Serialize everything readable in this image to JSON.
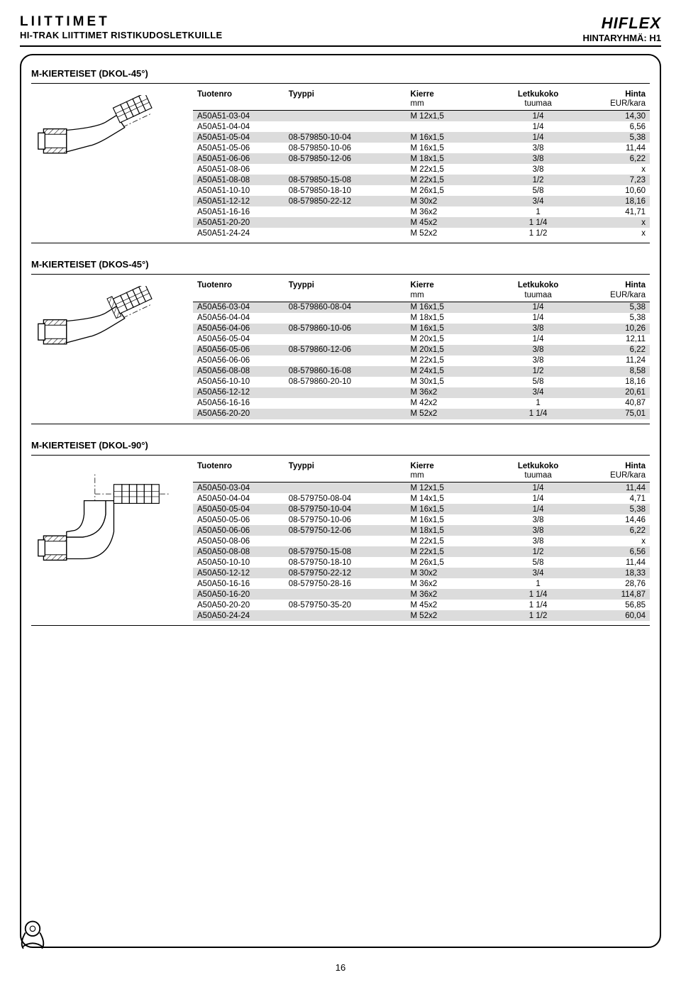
{
  "header": {
    "title_left": "LIITTIMET",
    "subtitle_left": "HI-TRAK LIITTIMET RISTIKUDOSLETKUILLE",
    "title_right": "HIFLEX",
    "subtitle_right": "HINTARYHMÄ: H1"
  },
  "columns": {
    "tuotenro": "Tuotenro",
    "tyyppi": "Tyyppi",
    "kierre": "Kierre",
    "kierre_sub": "mm",
    "letkukoko": "Letkukoko",
    "letkukoko_sub": "tuumaa",
    "hinta": "Hinta",
    "hinta_sub": "EUR/kara"
  },
  "sections": [
    {
      "title": "M-KIERTEISET (DKOL-45°)",
      "illus": "elbow45",
      "rows": [
        {
          "shade": true,
          "c": [
            "A50A51-03-04",
            "",
            "M 12x1,5",
            "1/4",
            "14,30"
          ]
        },
        {
          "shade": false,
          "c": [
            "A50A51-04-04",
            "",
            "",
            "1/4",
            "6,56"
          ]
        },
        {
          "shade": true,
          "c": [
            "A50A51-05-04",
            "08-579850-10-04",
            "M 16x1,5",
            "1/4",
            "5,38"
          ]
        },
        {
          "shade": false,
          "c": [
            "A50A51-05-06",
            "08-579850-10-06",
            "M 16x1,5",
            "3/8",
            "11,44"
          ]
        },
        {
          "shade": true,
          "c": [
            "A50A51-06-06",
            "08-579850-12-06",
            "M 18x1,5",
            "3/8",
            "6,22"
          ]
        },
        {
          "shade": false,
          "c": [
            "A50A51-08-06",
            "",
            "M 22x1,5",
            "3/8",
            "x"
          ]
        },
        {
          "shade": true,
          "c": [
            "A50A51-08-08",
            "08-579850-15-08",
            "M 22x1,5",
            "1/2",
            "7,23"
          ]
        },
        {
          "shade": false,
          "c": [
            "A50A51-10-10",
            "08-579850-18-10",
            "M 26x1,5",
            "5/8",
            "10,60"
          ]
        },
        {
          "shade": true,
          "c": [
            "A50A51-12-12",
            "08-579850-22-12",
            "M 30x2",
            "3/4",
            "18,16"
          ]
        },
        {
          "shade": false,
          "c": [
            "A50A51-16-16",
            "",
            "M 36x2",
            "1",
            "41,71"
          ]
        },
        {
          "shade": true,
          "c": [
            "A50A51-20-20",
            "",
            "M 45x2",
            "1 1/4",
            "x"
          ]
        },
        {
          "shade": false,
          "c": [
            "A50A51-24-24",
            "",
            "M 52x2",
            "1 1/2",
            "x"
          ]
        }
      ]
    },
    {
      "title": "M-KIERTEISET (DKOS-45°)",
      "illus": "elbow45b",
      "rows": [
        {
          "shade": true,
          "c": [
            "A50A56-03-04",
            "08-579860-08-04",
            "M 16x1,5",
            "1/4",
            "5,38"
          ]
        },
        {
          "shade": false,
          "c": [
            "A50A56-04-04",
            "",
            "M 18x1,5",
            "1/4",
            "5,38"
          ]
        },
        {
          "shade": true,
          "c": [
            "A50A56-04-06",
            "08-579860-10-06",
            "M 16x1,5",
            "3/8",
            "10,26"
          ]
        },
        {
          "shade": false,
          "c": [
            "A50A56-05-04",
            "",
            "M 20x1,5",
            "1/4",
            "12,11"
          ]
        },
        {
          "shade": true,
          "c": [
            "A50A56-05-06",
            "08-579860-12-06",
            "M 20x1,5",
            "3/8",
            "6,22"
          ]
        },
        {
          "shade": false,
          "c": [
            "A50A56-06-06",
            "",
            "M 22x1,5",
            "3/8",
            "11,24"
          ]
        },
        {
          "shade": true,
          "c": [
            "A50A56-08-08",
            "08-579860-16-08",
            "M 24x1,5",
            "1/2",
            "8,58"
          ]
        },
        {
          "shade": false,
          "c": [
            "A50A56-10-10",
            "08-579860-20-10",
            "M 30x1,5",
            "5/8",
            "18,16"
          ]
        },
        {
          "shade": true,
          "c": [
            "A50A56-12-12",
            "",
            "M 36x2",
            "3/4",
            "20,61"
          ]
        },
        {
          "shade": false,
          "c": [
            "A50A56-16-16",
            "",
            "M 42x2",
            "1",
            "40,87"
          ]
        },
        {
          "shade": true,
          "c": [
            "A50A56-20-20",
            "",
            "M 52x2",
            "1 1/4",
            "75,01"
          ]
        }
      ]
    },
    {
      "title": "M-KIERTEISET (DKOL-90°)",
      "illus": "elbow90",
      "rows": [
        {
          "shade": true,
          "c": [
            "A50A50-03-04",
            "",
            "M 12x1,5",
            "1/4",
            "11,44"
          ]
        },
        {
          "shade": false,
          "c": [
            "A50A50-04-04",
            "08-579750-08-04",
            "M 14x1,5",
            "1/4",
            "4,71"
          ]
        },
        {
          "shade": true,
          "c": [
            "A50A50-05-04",
            "08-579750-10-04",
            "M 16x1,5",
            "1/4",
            "5,38"
          ]
        },
        {
          "shade": false,
          "c": [
            "A50A50-05-06",
            "08-579750-10-06",
            "M 16x1,5",
            "3/8",
            "14,46"
          ]
        },
        {
          "shade": true,
          "c": [
            "A50A50-06-06",
            "08-579750-12-06",
            "M 18x1,5",
            "3/8",
            "6,22"
          ]
        },
        {
          "shade": false,
          "c": [
            "A50A50-08-06",
            "",
            "M 22x1,5",
            "3/8",
            "x"
          ]
        },
        {
          "shade": true,
          "c": [
            "A50A50-08-08",
            "08-579750-15-08",
            "M 22x1,5",
            "1/2",
            "6,56"
          ]
        },
        {
          "shade": false,
          "c": [
            "A50A50-10-10",
            "08-579750-18-10",
            "M 26x1,5",
            "5/8",
            "11,44"
          ]
        },
        {
          "shade": true,
          "c": [
            "A50A50-12-12",
            "08-579750-22-12",
            "M 30x2",
            "3/4",
            "18,33"
          ]
        },
        {
          "shade": false,
          "c": [
            "A50A50-16-16",
            "08-579750-28-16",
            "M 36x2",
            "1",
            "28,76"
          ]
        },
        {
          "shade": true,
          "c": [
            "A50A50-16-20",
            "",
            "M 36x2",
            "1 1/4",
            "114,87"
          ]
        },
        {
          "shade": false,
          "c": [
            "A50A50-20-20",
            "08-579750-35-20",
            "M 45x2",
            "1 1/4",
            "56,85"
          ]
        },
        {
          "shade": true,
          "c": [
            "A50A50-24-24",
            "",
            "M 52x2",
            "1 1/2",
            "60,04"
          ]
        }
      ]
    }
  ],
  "page_number": "16",
  "styling": {
    "shade_bg": "#dcdcdc",
    "line_color": "#000000",
    "font_family": "Arial",
    "font_size_body": 11.5,
    "font_size_title": 13,
    "border_radius_frame": 18
  }
}
